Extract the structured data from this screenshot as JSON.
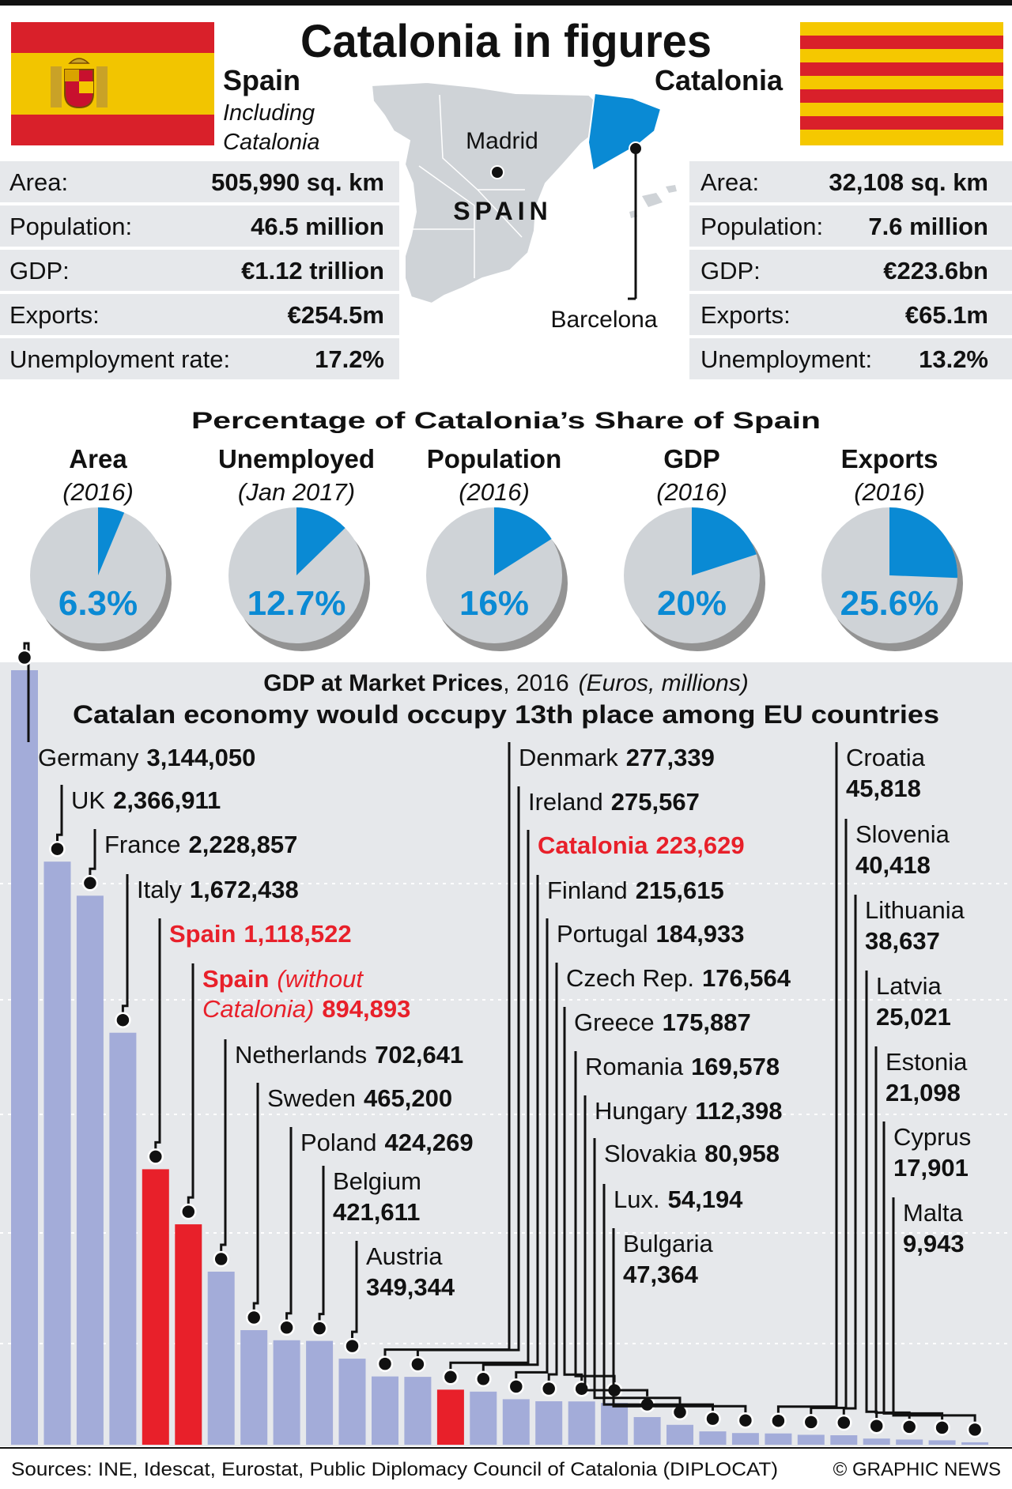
{
  "header": {
    "title": "Catalonia in figures",
    "spain_heading": "Spain",
    "spain_sub_line1": "Including",
    "spain_sub_line2": "Catalonia",
    "catalonia_heading": "Catalonia"
  },
  "map": {
    "country_label": "SPAIN",
    "madrid_label": "Madrid",
    "barcelona_label": "Barcelona"
  },
  "colors": {
    "accent_blue": "#0a8ad4",
    "highlight_red": "#e8202a",
    "bar_blue": "#a3acd9",
    "panel_grey": "#e6e8eb",
    "pie_grey": "#cfd3d7"
  },
  "spain_stats": [
    {
      "label": "Area:",
      "value": "505,990 sq. km"
    },
    {
      "label": "Population:",
      "value": "46.5 million"
    },
    {
      "label": "GDP:",
      "value": "€1.12 trillion"
    },
    {
      "label": "Exports:",
      "value": "€254.5m"
    },
    {
      "label": "Unemployment rate:",
      "value": "17.2%"
    }
  ],
  "catalonia_stats": [
    {
      "label": "Area:",
      "value": "32,108 sq. km"
    },
    {
      "label": "Population:",
      "value": "7.6 million"
    },
    {
      "label": "GDP:",
      "value": "€223.6bn"
    },
    {
      "label": "Exports:",
      "value": "€65.1m"
    },
    {
      "label": "Unemployment:",
      "value": "13.2%"
    }
  ],
  "chart_data": [
    {
      "type": "pie",
      "title": "Percentage of Catalonia’s Share of Spain",
      "series": [
        {
          "name": "Area",
          "period": "(2016)",
          "value": 6.3,
          "label": "6.3%"
        },
        {
          "name": "Unemployed",
          "period": "(Jan 2017)",
          "value": 12.7,
          "label": "12.7%"
        },
        {
          "name": "Population",
          "period": "(2016)",
          "value": 16,
          "label": "16%"
        },
        {
          "name": "GDP",
          "period": "(2016)",
          "value": 20,
          "label": "20%"
        },
        {
          "name": "Exports",
          "period": "(2016)",
          "value": 25.6,
          "label": "25.6%"
        }
      ]
    },
    {
      "type": "bar",
      "title": "GDP at Market Prices",
      "title_year": ", 2016",
      "title_units": "(Euros, millions)",
      "subtitle": "Catalan economy would occupy 13th place among EU countries",
      "ylim": [
        0,
        3400000
      ],
      "grid": true,
      "categories": [
        "Germany",
        "UK",
        "France",
        "Italy",
        "Spain",
        "Spain (without Catalonia)",
        "Netherlands",
        "Sweden",
        "Poland",
        "Belgium",
        "Austria",
        "Denmark",
        "Ireland",
        "Catalonia",
        "Finland",
        "Portugal",
        "Czech Rep.",
        "Greece",
        "Romania",
        "Hungary",
        "Slovakia",
        "Lux.",
        "Bulgaria",
        "Croatia",
        "Slovenia",
        "Lithuania",
        "Latvia",
        "Estonia",
        "Cyprus",
        "Malta"
      ],
      "values": [
        3144050,
        2366911,
        2228857,
        1672438,
        1118522,
        894893,
        702641,
        465200,
        424269,
        421611,
        349344,
        277339,
        275567,
        223629,
        215615,
        184933,
        176564,
        175887,
        169578,
        112398,
        80958,
        54194,
        47364,
        45818,
        40418,
        38637,
        25021,
        21098,
        17901,
        9943
      ],
      "labels": [
        {
          "name": "Germany",
          "value": "3,144,050",
          "hl": false
        },
        {
          "name": "UK",
          "value": "2,366,911",
          "hl": false
        },
        {
          "name": "France",
          "value": "2,228,857",
          "hl": false
        },
        {
          "name": "Italy",
          "value": "1,672,438",
          "hl": false
        },
        {
          "name": "Spain",
          "value": "1,118,522",
          "hl": true
        },
        {
          "name": "Spain",
          "name_suffix": "(without",
          "name_line2": "Catalonia)",
          "value": "894,893",
          "hl": true
        },
        {
          "name": "Netherlands",
          "value": "702,641",
          "hl": false
        },
        {
          "name": "Sweden",
          "value": "465,200",
          "hl": false
        },
        {
          "name": "Poland",
          "value": "424,269",
          "hl": false
        },
        {
          "name": "Belgium",
          "value": "421,611",
          "hl": false
        },
        {
          "name": "Austria",
          "value": "349,344",
          "hl": false
        },
        {
          "name": "Denmark",
          "value": "277,339",
          "hl": false
        },
        {
          "name": "Ireland",
          "value": "275,567",
          "hl": false
        },
        {
          "name": "Catalonia",
          "value": "223,629",
          "hl": true
        },
        {
          "name": "Finland",
          "value": "215,615",
          "hl": false
        },
        {
          "name": "Portugal",
          "value": "184,933",
          "hl": false
        },
        {
          "name": "Czech Rep.",
          "value": "176,564",
          "hl": false
        },
        {
          "name": "Greece",
          "value": "175,887",
          "hl": false
        },
        {
          "name": "Romania",
          "value": "169,578",
          "hl": false
        },
        {
          "name": "Hungary",
          "value": "112,398",
          "hl": false
        },
        {
          "name": "Slovakia",
          "value": "80,958",
          "hl": false
        },
        {
          "name": "Lux.",
          "value": "54,194",
          "hl": false
        },
        {
          "name": "Bulgaria",
          "value": "47,364",
          "hl": false
        },
        {
          "name": "Croatia",
          "value": "45,818",
          "hl": false
        },
        {
          "name": "Slovenia",
          "value": "40,418",
          "hl": false
        },
        {
          "name": "Lithuania",
          "value": "38,637",
          "hl": false
        },
        {
          "name": "Latvia",
          "value": "25,021",
          "hl": false
        },
        {
          "name": "Estonia",
          "value": "21,098",
          "hl": false
        },
        {
          "name": "Cyprus",
          "value": "17,901",
          "hl": false
        },
        {
          "name": "Malta",
          "value": "9,943",
          "hl": false
        }
      ]
    }
  ],
  "footer": {
    "sources": "Sources: INE, Idescat, Eurostat, Public Diplomacy Council of Catalonia (DIPLOCAT)",
    "credit": "© GRAPHIC NEWS"
  }
}
